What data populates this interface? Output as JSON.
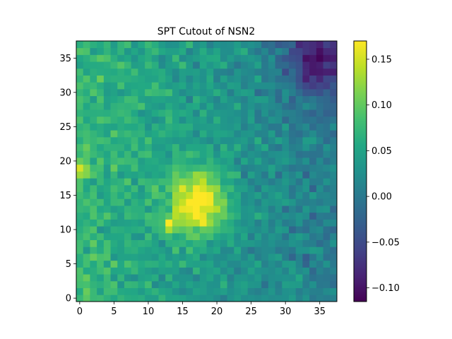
{
  "chart_data": {
    "type": "heatmap",
    "title": "SPT Cutout of NSN2",
    "xlabel": "",
    "ylabel": "",
    "grid": false,
    "colormap": "viridis",
    "shape": [
      38,
      38
    ],
    "xlim": [
      -0.5,
      37.5
    ],
    "ylim": [
      -0.5,
      37.5
    ],
    "x_ticks": [
      0,
      5,
      10,
      15,
      20,
      25,
      30,
      35
    ],
    "y_ticks": [
      0,
      5,
      10,
      15,
      20,
      25,
      30,
      35
    ],
    "vmin": -0.115,
    "vmax": 0.17,
    "colorbar": {
      "ticks": [
        0.15,
        0.1,
        0.05,
        0.0,
        -0.05,
        -0.1
      ],
      "tick_labels": [
        "0.15",
        "0.10",
        "0.05",
        "0.00",
        "−0.05",
        "−0.10"
      ]
    },
    "features": [
      {
        "description": "central source peak",
        "x": 17.5,
        "y": 14,
        "amplitude": 0.15,
        "sigma": 3.0
      },
      {
        "description": "hot pixels near left edge",
        "x": 0,
        "y": 19,
        "amplitude": 0.13
      },
      {
        "description": "faint positive lobe",
        "x": 13,
        "y": 10.5,
        "amplitude": 0.11
      },
      {
        "description": "negative region upper right",
        "x": 35,
        "y": 35,
        "amplitude": -0.1,
        "sigma": 4
      }
    ]
  }
}
